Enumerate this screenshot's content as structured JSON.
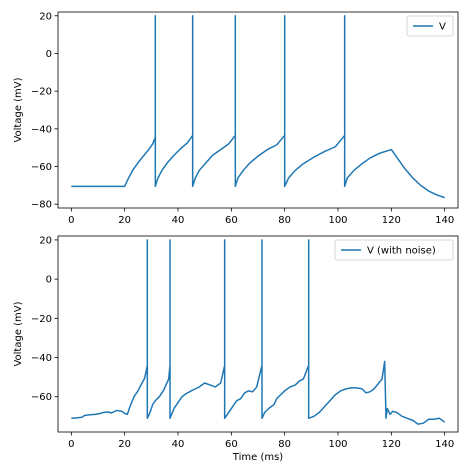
{
  "chart_data": [
    {
      "type": "line",
      "title": "",
      "xlabel": "",
      "ylabel": "Voltage (mV)",
      "xlim": [
        -5,
        145
      ],
      "ylim": [
        -82,
        22
      ],
      "xticks": [
        0,
        20,
        40,
        60,
        80,
        100,
        120,
        140
      ],
      "xtick_labels": [
        "0",
        "20",
        "40",
        "60",
        "80",
        "100",
        "120",
        "140"
      ],
      "yticks": [
        20,
        0,
        -20,
        -40,
        -60,
        -80
      ],
      "ytick_labels": [
        "20",
        "0",
        "−20",
        "−40",
        "−60",
        "−80"
      ],
      "legend_position": "upper right",
      "grid": false,
      "series": [
        {
          "name": "V",
          "color": "#1f77b4",
          "points": [
            [
              0,
              -70.5
            ],
            [
              20,
              -70.5
            ],
            [
              21.5,
              -66
            ],
            [
              23,
              -62
            ],
            [
              25,
              -58
            ],
            [
              27,
              -54.5
            ],
            [
              29,
              -51
            ],
            [
              30.5,
              -48
            ],
            [
              31.5,
              -44.5
            ],
            [
              31.5,
              20
            ],
            [
              31.5,
              -70.5
            ],
            [
              32.5,
              -66
            ],
            [
              34,
              -62
            ],
            [
              36,
              -58
            ],
            [
              38.5,
              -54
            ],
            [
              41,
              -50.5
            ],
            [
              43.5,
              -47.5
            ],
            [
              45.5,
              -43.5
            ],
            [
              45.5,
              20
            ],
            [
              45.5,
              -70.5
            ],
            [
              46.5,
              -66
            ],
            [
              48,
              -62
            ],
            [
              50.5,
              -58
            ],
            [
              53,
              -54
            ],
            [
              56,
              -51
            ],
            [
              59,
              -48
            ],
            [
              61.5,
              -43.5
            ],
            [
              61.5,
              20
            ],
            [
              61.5,
              -70.5
            ],
            [
              62.5,
              -66
            ],
            [
              64.5,
              -62
            ],
            [
              67,
              -58
            ],
            [
              70,
              -54.5
            ],
            [
              73.5,
              -51
            ],
            [
              77,
              -48.5
            ],
            [
              80,
              -43.5
            ],
            [
              80,
              20
            ],
            [
              80,
              -70.5
            ],
            [
              81.5,
              -66
            ],
            [
              84,
              -62
            ],
            [
              87,
              -58.5
            ],
            [
              91,
              -55
            ],
            [
              95,
              -52
            ],
            [
              99,
              -49.5
            ],
            [
              102.5,
              -43.5
            ],
            [
              102.5,
              20
            ],
            [
              102.5,
              -70.5
            ],
            [
              103.5,
              -66
            ],
            [
              106,
              -62
            ],
            [
              109,
              -58.5
            ],
            [
              112,
              -55.5
            ],
            [
              115.5,
              -53
            ],
            [
              120,
              -51
            ],
            [
              122,
              -55
            ],
            [
              125,
              -61
            ],
            [
              128,
              -66
            ],
            [
              131,
              -70
            ],
            [
              134,
              -73
            ],
            [
              137,
              -75
            ],
            [
              140,
              -76.5
            ]
          ]
        }
      ]
    },
    {
      "type": "line",
      "title": "",
      "xlabel": "Time (ms)",
      "ylabel": "Voltage (mV)",
      "xlim": [
        -5,
        145
      ],
      "ylim": [
        -78,
        22
      ],
      "xticks": [
        0,
        20,
        40,
        60,
        80,
        100,
        120,
        140
      ],
      "xtick_labels": [
        "0",
        "20",
        "40",
        "60",
        "80",
        "100",
        "120",
        "140"
      ],
      "yticks": [
        20,
        0,
        -20,
        -40,
        -60
      ],
      "ytick_labels": [
        "20",
        "0",
        "−20",
        "−40",
        "−60"
      ],
      "legend_position": "upper right",
      "grid": false,
      "series": [
        {
          "name": "V (with noise)",
          "color": "#1f77b4",
          "points": [
            [
              0,
              -71
            ],
            [
              2,
              -70.8
            ],
            [
              4,
              -70.5
            ],
            [
              5,
              -69.5
            ],
            [
              7,
              -69.2
            ],
            [
              9,
              -69
            ],
            [
              11,
              -68.5
            ],
            [
              12,
              -68
            ],
            [
              14,
              -67.8
            ],
            [
              15,
              -68.3
            ],
            [
              17,
              -67
            ],
            [
              19,
              -67.5
            ],
            [
              20,
              -68.5
            ],
            [
              21,
              -69
            ],
            [
              22,
              -65
            ],
            [
              23.5,
              -60
            ],
            [
              25,
              -57
            ],
            [
              26.5,
              -53
            ],
            [
              27.5,
              -50.5
            ],
            [
              28.5,
              -44
            ],
            [
              28.5,
              20
            ],
            [
              28.5,
              -71
            ],
            [
              29.5,
              -68
            ],
            [
              30.5,
              -64
            ],
            [
              31.5,
              -62
            ],
            [
              33,
              -60
            ],
            [
              34.5,
              -57
            ],
            [
              35.5,
              -54
            ],
            [
              36.5,
              -51
            ],
            [
              37,
              -44
            ],
            [
              37,
              20
            ],
            [
              37,
              -71
            ],
            [
              38.5,
              -66
            ],
            [
              40,
              -63
            ],
            [
              41.5,
              -60
            ],
            [
              43,
              -58.5
            ],
            [
              45,
              -57
            ],
            [
              46.5,
              -56
            ],
            [
              48,
              -55
            ],
            [
              50,
              -53
            ],
            [
              52,
              -54
            ],
            [
              54,
              -55
            ],
            [
              56,
              -53
            ],
            [
              57.5,
              -44
            ],
            [
              57.5,
              20
            ],
            [
              57.5,
              -71
            ],
            [
              59,
              -68
            ],
            [
              60.5,
              -65
            ],
            [
              62,
              -62
            ],
            [
              63.5,
              -61
            ],
            [
              65,
              -58
            ],
            [
              66.5,
              -57
            ],
            [
              68,
              -57.5
            ],
            [
              69.5,
              -55
            ],
            [
              71.5,
              -44
            ],
            [
              71.5,
              20
            ],
            [
              71.5,
              -71
            ],
            [
              72.5,
              -68
            ],
            [
              74,
              -66
            ],
            [
              76,
              -64
            ],
            [
              77,
              -61
            ],
            [
              78.5,
              -59
            ],
            [
              80,
              -57
            ],
            [
              82,
              -55
            ],
            [
              84,
              -54
            ],
            [
              85.5,
              -52
            ],
            [
              87,
              -51
            ],
            [
              89,
              -44
            ],
            [
              89,
              20
            ],
            [
              89,
              -71
            ],
            [
              91,
              -70
            ],
            [
              93,
              -68
            ],
            [
              95,
              -65
            ],
            [
              97,
              -62
            ],
            [
              99,
              -59
            ],
            [
              101,
              -57
            ],
            [
              103,
              -56
            ],
            [
              105,
              -55.5
            ],
            [
              107,
              -55.5
            ],
            [
              109,
              -56
            ],
            [
              110.5,
              -58
            ],
            [
              112,
              -57.5
            ],
            [
              113.5,
              -56
            ],
            [
              115,
              -53.5
            ],
            [
              116.5,
              -51
            ],
            [
              117.5,
              -42
            ],
            [
              118,
              -71
            ],
            [
              118.5,
              -66
            ],
            [
              119.5,
              -69
            ],
            [
              120.5,
              -67.5
            ],
            [
              122,
              -68
            ],
            [
              124,
              -70
            ],
            [
              126,
              -71
            ],
            [
              128,
              -72
            ],
            [
              130,
              -74
            ],
            [
              132,
              -73.5
            ],
            [
              134,
              -71.5
            ],
            [
              136,
              -71.5
            ],
            [
              138,
              -71
            ],
            [
              140,
              -73
            ]
          ]
        }
      ]
    }
  ]
}
